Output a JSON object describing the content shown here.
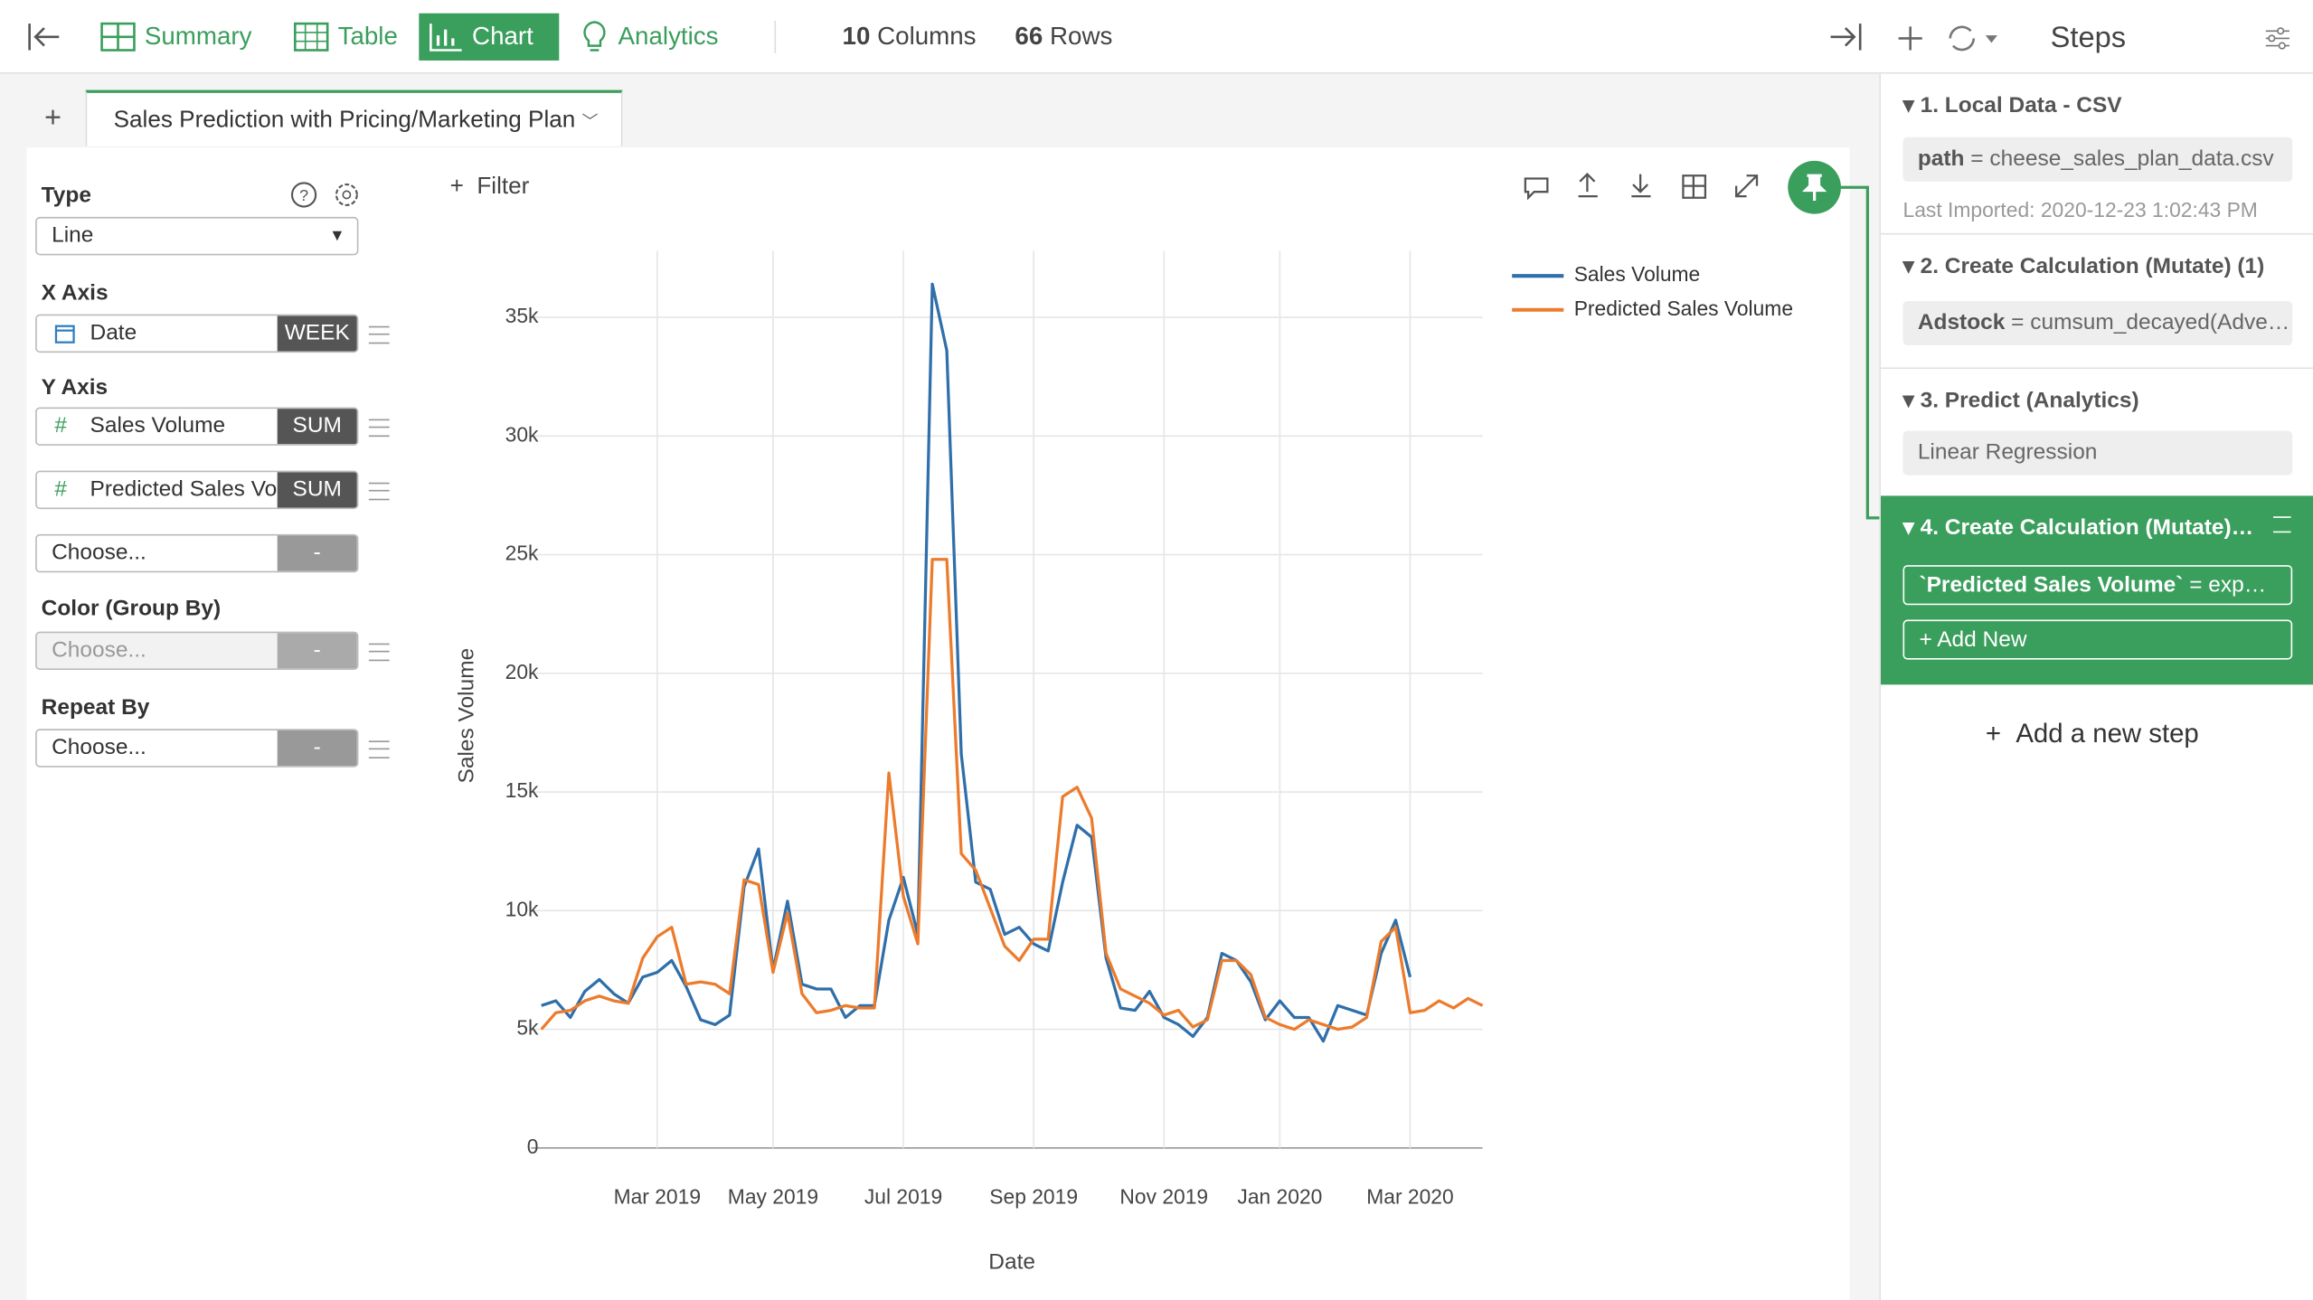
{
  "topbar": {
    "nav": [
      "Summary",
      "Table",
      "Chart",
      "Analytics"
    ],
    "columns": {
      "count": 10,
      "label": "Columns"
    },
    "rows": {
      "count": 66,
      "label": "Rows"
    }
  },
  "tab_title": "Sales Prediction with Pricing/Marketing Plan",
  "config": {
    "type_label": "Type",
    "type_value": "Line",
    "x_axis_label": "X Axis",
    "x_field": {
      "name": "Date",
      "agg": "WEEK"
    },
    "y_axis_label": "Y Axis",
    "y_fields": [
      {
        "name": "Sales Volume",
        "agg": "SUM"
      },
      {
        "name": "Predicted Sales Vol",
        "agg": "SUM"
      },
      {
        "name": "Choose...",
        "agg": "-"
      }
    ],
    "color_label": "Color (Group By)",
    "color_field": {
      "name": "Choose...",
      "agg": "-"
    },
    "repeat_label": "Repeat By",
    "repeat_field": {
      "name": "Choose...",
      "agg": "-"
    }
  },
  "filter": "Filter",
  "steps_panel": {
    "title": "Steps",
    "steps": [
      {
        "title": "1. Local Data - CSV",
        "key": "path",
        "op": "=",
        "value": "cheese_sales_plan_data.csv",
        "note": "Last Imported: 2020-12-23 1:02:43 PM"
      },
      {
        "title": "2. Create Calculation (Mutate) (1)",
        "key": "Adstock",
        "op": "=",
        "value": "cumsum_decayed(Adve…"
      },
      {
        "title": "3. Predict (Analytics)",
        "value": "Linear Regression"
      },
      {
        "title": "4. Create Calculation (Mutate)…",
        "key": "`Predicted Sales Volume`",
        "op": "=",
        "value": "exp…",
        "add_new": "Add New"
      }
    ],
    "add_step": "Add a new step"
  },
  "chart_data": {
    "type": "line",
    "x_label": "Date",
    "y_label": "Sales Volume",
    "categories": [
      null,
      null,
      null,
      null,
      null,
      null,
      null,
      null,
      "Mar 2019",
      null,
      null,
      null,
      null,
      null,
      null,
      null,
      "May 2019",
      null,
      null,
      null,
      null,
      null,
      null,
      null,
      null,
      "Jul 2019",
      null,
      null,
      null,
      null,
      null,
      null,
      null,
      null,
      "Sep 2019",
      null,
      null,
      null,
      null,
      null,
      null,
      null,
      null,
      "Nov 2019",
      null,
      null,
      null,
      null,
      null,
      null,
      null,
      "Jan 2020",
      null,
      null,
      null,
      null,
      null,
      null,
      null,
      null,
      "Mar 2020",
      null,
      null,
      null,
      null,
      null
    ],
    "series": [
      {
        "name": "Sales Volume",
        "color": "#2f6faa",
        "values": [
          6000,
          6200,
          5500,
          6600,
          7100,
          6500,
          6100,
          7200,
          7400,
          7900,
          6800,
          5400,
          5200,
          5600,
          11000,
          12600,
          7500,
          10400,
          6900,
          6700,
          6700,
          5500,
          6000,
          6000,
          9600,
          11400,
          9000,
          36400,
          33600,
          16600,
          11200,
          10900,
          9000,
          9300,
          8600,
          8300,
          11200,
          13600,
          13100,
          8000,
          5900,
          5800,
          6600,
          5500,
          5200,
          4700,
          5500,
          8200,
          7900,
          7000,
          5400,
          6200,
          5500,
          5500,
          4500,
          6000,
          5800,
          5600,
          8200,
          9600,
          7200,
          null,
          null,
          null,
          null,
          null
        ]
      },
      {
        "name": "Predicted Sales Volume",
        "color": "#ec7b2c",
        "values": [
          5000,
          5700,
          5800,
          6200,
          6400,
          6200,
          6100,
          8000,
          8900,
          9300,
          6900,
          7000,
          6900,
          6500,
          11300,
          11100,
          7400,
          9900,
          6500,
          5700,
          5800,
          6000,
          5900,
          5900,
          15800,
          10600,
          8600,
          24800,
          24800,
          12400,
          11700,
          10100,
          8500,
          7900,
          8800,
          8800,
          14800,
          15200,
          13900,
          8200,
          6700,
          6400,
          6100,
          5600,
          5800,
          5100,
          5400,
          7900,
          7900,
          7300,
          5500,
          5200,
          5000,
          5400,
          5200,
          5000,
          5100,
          5500,
          8700,
          9300,
          5700,
          5800,
          6200,
          5900,
          6300,
          6000
        ]
      }
    ],
    "ylim": [
      0,
      37800
    ],
    "yticks": [
      0,
      {
        "value": 5000,
        "label": "5k"
      },
      {
        "value": 10000,
        "label": "10k"
      },
      {
        "value": 15000,
        "label": "15k"
      },
      {
        "value": 20000,
        "label": "20k"
      },
      {
        "value": 25000,
        "label": "25k"
      },
      {
        "value": 30000,
        "label": "30k"
      },
      {
        "value": 35000,
        "label": "35k"
      }
    ],
    "grid": true,
    "legend": "right"
  }
}
